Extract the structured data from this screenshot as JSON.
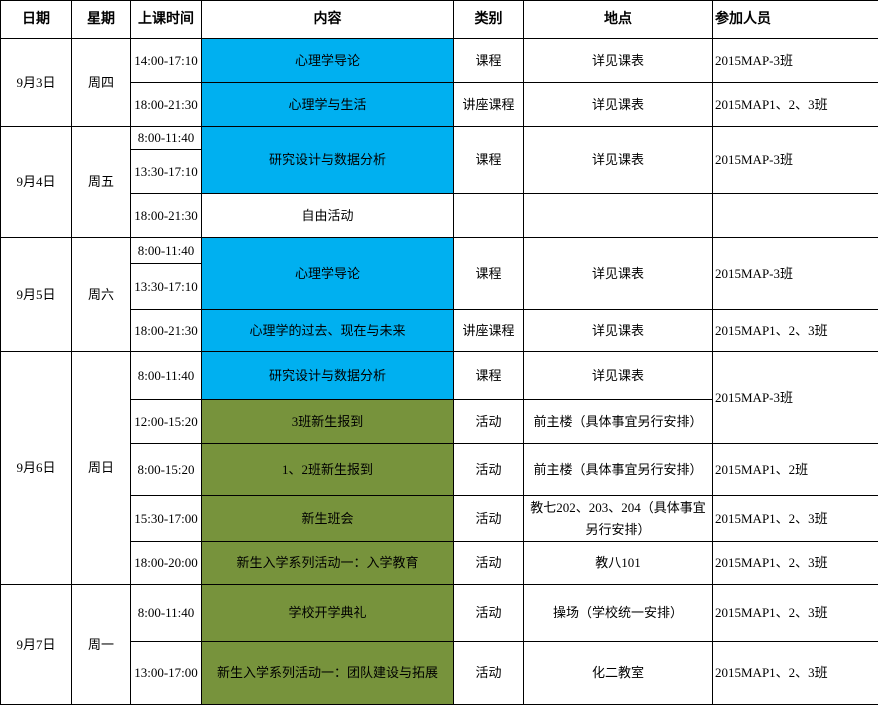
{
  "colors": {
    "course": "#00B0F0",
    "activity": "#77933C",
    "border": "#000000"
  },
  "headers": [
    "日期",
    "星期",
    "上课时间",
    "内容",
    "类别",
    "地点",
    "参加人员"
  ],
  "rows": [
    {
      "date": "9月3日",
      "date_rs": 2,
      "weekday": "周四",
      "time": "14:00-17:10",
      "content": "心理学导论",
      "bg": "course",
      "type": "课程",
      "place": "详见课表",
      "people": "2015MAP-3班"
    },
    {
      "time": "18:00-21:30",
      "content": "心理学与生活",
      "bg": "course",
      "type": "讲座课程",
      "place": "详见课表",
      "people": "2015MAP1、2、3班"
    },
    {
      "date": "9月4日",
      "date_rs": 3,
      "weekday": "周五",
      "time": "8:00-11:40",
      "content": "研究设计与数据分析",
      "content_rs": 2,
      "bg": "course",
      "type": "课程",
      "place": "详见课表",
      "people": "2015MAP-3班",
      "people_rs": 2
    },
    {
      "time": "13:30-17:10"
    },
    {
      "time": "18:00-21:30",
      "content": "自由活动",
      "bg": "",
      "type": "",
      "place": "",
      "people": ""
    },
    {
      "date": "9月5日",
      "date_rs": 3,
      "weekday": "周六",
      "time": "8:00-11:40",
      "content": "心理学导论",
      "content_rs": 2,
      "bg": "course",
      "type": "课程",
      "place": "详见课表",
      "people": "2015MAP-3班",
      "people_rs": 2
    },
    {
      "time": "13:30-17:10"
    },
    {
      "time": "18:00-21:30",
      "content": "心理学的过去、现在与未来",
      "bg": "course",
      "type": "讲座课程",
      "place": "详见课表",
      "people": "2015MAP1、2、3班"
    },
    {
      "date": "9月6日",
      "date_rs": 5,
      "weekday": "周日",
      "time": "8:00-11:40",
      "content": "研究设计与数据分析",
      "bg": "course",
      "type": "课程",
      "place": "详见课表",
      "people": "2015MAP-3班",
      "people_rs": 2
    },
    {
      "time": "12:00-15:20",
      "content": "3班新生报到",
      "bg": "activity",
      "type": "活动",
      "place": "前主楼（具体事宜另行安排）"
    },
    {
      "time": "8:00-15:20",
      "content": "1、2班新生报到",
      "bg": "activity",
      "type": "活动",
      "place": "前主楼（具体事宜另行安排）",
      "people": "2015MAP1、2班"
    },
    {
      "time": "15:30-17:00",
      "content": "新生班会",
      "bg": "activity",
      "type": "活动",
      "place": "教七202、203、204（具体事宜另行安排）",
      "people": "2015MAP1、2、3班"
    },
    {
      "time": "18:00-20:00",
      "content": "新生入学系列活动一：入学教育",
      "bg": "activity",
      "type": "活动",
      "place": "教八101",
      "people": "2015MAP1、2、3班"
    },
    {
      "date": "9月7日",
      "date_rs": 2,
      "weekday": "周一",
      "time": "8:00-11:40",
      "content": "学校开学典礼",
      "bg": "activity",
      "type": "活动",
      "place": "操场（学校统一安排）",
      "people": "2015MAP1、2、3班"
    },
    {
      "time": "13:00-17:00",
      "content": "新生入学系列活动一：团队建设与拓展",
      "bg": "activity",
      "type": "活动",
      "place": "化二教室",
      "people": "2015MAP1、2、3班"
    }
  ]
}
